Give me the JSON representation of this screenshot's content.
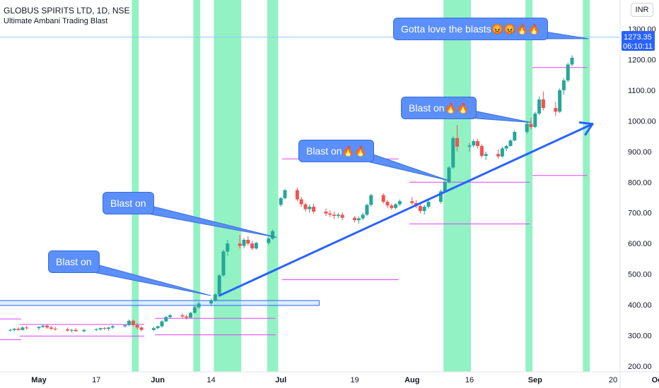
{
  "header": {
    "title": "GLOBUS SPIRITS LTD, 1D, NSE",
    "indicator": "Ultimate Ambani Trading Blast",
    "currency": "INR"
  },
  "price_tag": {
    "price": "1273.35",
    "countdown": "06:10:11"
  },
  "annotations": [
    {
      "text": "Blast on"
    },
    {
      "text": "Blast on"
    },
    {
      "text": "Blast on🔥🔥"
    },
    {
      "text": "Blast on🔥🔥"
    },
    {
      "text": "Gotta love the blasts😡😡🔥🔥"
    }
  ],
  "colors": {
    "up": "#26a69a",
    "down": "#ef5350",
    "highlight": "#7ff0b8",
    "callout": "#5b8ff9",
    "trendline": "#2962ff",
    "level_line": "#e040fb",
    "price_tag_bg": "#2962ff"
  },
  "chart_data": {
    "type": "candlestick",
    "title": "GLOBUS SPIRITS LTD, 1D, NSE",
    "subtitle": "Ultimate Ambani Trading Blast",
    "y_ticks": [
      "1300.00",
      "1200.00",
      "1100.00",
      "1000.00",
      "900.00",
      "800.00",
      "700.00",
      "600.00",
      "500.00",
      "400.00",
      "300.00",
      "200.00"
    ],
    "ylim": [
      190,
      1310
    ],
    "x_ticks": [
      {
        "label": "May",
        "bold": true,
        "x": "2021-05-03"
      },
      {
        "label": "17",
        "bold": false,
        "x": "2021-05-17"
      },
      {
        "label": "Jun",
        "bold": true,
        "x": "2021-06-01"
      },
      {
        "label": "14",
        "bold": false,
        "x": "2021-06-14"
      },
      {
        "label": "Jul",
        "bold": true,
        "x": "2021-07-01"
      },
      {
        "label": "19",
        "bold": false,
        "x": "2021-07-19"
      },
      {
        "label": "Aug",
        "bold": true,
        "x": "2021-08-02"
      },
      {
        "label": "16",
        "bold": false,
        "x": "2021-08-16"
      },
      {
        "label": "Sep",
        "bold": true,
        "x": "2021-09-01"
      },
      {
        "label": "20",
        "bold": false,
        "x": "2021-09-20"
      },
      {
        "label": "Oct",
        "bold": true,
        "x": "2021-10-01"
      }
    ],
    "last_price": 1273.35,
    "candles": [
      [
        "2021-04-22",
        312,
        318,
        308,
        314
      ],
      [
        "2021-04-23",
        314,
        320,
        310,
        316
      ],
      [
        "2021-04-26",
        316,
        322,
        312,
        318
      ],
      [
        "2021-04-27",
        318,
        325,
        314,
        322
      ],
      [
        "2021-04-28",
        322,
        326,
        316,
        318
      ],
      [
        "2021-04-29",
        318,
        330,
        316,
        326
      ],
      [
        "2021-04-30",
        326,
        332,
        320,
        324
      ],
      [
        "2021-05-03",
        324,
        330,
        318,
        328
      ],
      [
        "2021-05-04",
        328,
        336,
        324,
        332
      ],
      [
        "2021-05-05",
        332,
        336,
        322,
        326
      ],
      [
        "2021-05-06",
        326,
        332,
        318,
        322
      ],
      [
        "2021-05-07",
        322,
        328,
        316,
        320
      ],
      [
        "2021-05-10",
        320,
        326,
        312,
        316
      ],
      [
        "2021-05-11",
        316,
        322,
        310,
        318
      ],
      [
        "2021-05-12",
        318,
        324,
        312,
        314
      ],
      [
        "2021-05-14",
        314,
        322,
        310,
        318
      ],
      [
        "2021-05-17",
        318,
        324,
        314,
        320
      ],
      [
        "2021-05-18",
        320,
        326,
        316,
        324
      ],
      [
        "2021-05-19",
        324,
        328,
        318,
        322
      ],
      [
        "2021-05-20",
        322,
        328,
        316,
        326
      ],
      [
        "2021-05-21",
        326,
        334,
        322,
        330
      ],
      [
        "2021-05-24",
        330,
        336,
        326,
        334
      ],
      [
        "2021-05-25",
        334,
        352,
        330,
        348
      ],
      [
        "2021-05-26",
        348,
        352,
        330,
        334
      ],
      [
        "2021-05-27",
        334,
        340,
        320,
        326
      ],
      [
        "2021-05-28",
        326,
        330,
        314,
        318
      ],
      [
        "2021-05-31",
        318,
        328,
        314,
        324
      ],
      [
        "2021-06-01",
        324,
        332,
        320,
        330
      ],
      [
        "2021-06-02",
        330,
        350,
        326,
        346
      ],
      [
        "2021-06-03",
        346,
        364,
        344,
        360
      ],
      [
        "2021-06-04",
        360,
        370,
        354,
        366
      ],
      [
        "2021-06-07",
        366,
        372,
        356,
        362
      ],
      [
        "2021-06-08",
        362,
        368,
        352,
        358
      ],
      [
        "2021-06-09",
        358,
        378,
        356,
        374
      ],
      [
        "2021-06-10",
        374,
        396,
        372,
        392
      ],
      [
        "2021-06-11",
        392,
        410,
        388,
        404
      ],
      [
        "2021-06-14",
        404,
        420,
        396,
        414
      ],
      [
        "2021-06-15",
        414,
        438,
        410,
        434
      ],
      [
        "2021-06-16",
        434,
        500,
        432,
        496
      ],
      [
        "2021-06-17",
        496,
        580,
        492,
        574
      ],
      [
        "2021-06-18",
        574,
        612,
        560,
        600
      ],
      [
        "2021-06-21",
        600,
        628,
        584,
        592
      ],
      [
        "2021-06-22",
        592,
        618,
        584,
        612
      ],
      [
        "2021-06-23",
        612,
        624,
        594,
        600
      ],
      [
        "2021-06-24",
        600,
        608,
        578,
        584
      ],
      [
        "2021-06-25",
        584,
        606,
        580,
        602
      ],
      [
        "2021-06-28",
        602,
        620,
        596,
        616
      ],
      [
        "2021-06-29",
        616,
        646,
        612,
        640
      ],
      [
        "2021-07-01",
        726,
        752,
        720,
        748
      ],
      [
        "2021-07-02",
        748,
        778,
        744,
        774
      ],
      [
        "2021-07-05",
        774,
        782,
        738,
        744
      ],
      [
        "2021-07-06",
        744,
        752,
        720,
        728
      ],
      [
        "2021-07-07",
        728,
        734,
        704,
        712
      ],
      [
        "2021-07-08",
        712,
        728,
        700,
        720
      ],
      [
        "2021-07-09",
        720,
        730,
        698,
        704
      ],
      [
        "2021-07-12",
        704,
        714,
        690,
        698
      ],
      [
        "2021-07-13",
        698,
        708,
        686,
        694
      ],
      [
        "2021-07-14",
        694,
        704,
        680,
        690
      ],
      [
        "2021-07-15",
        690,
        700,
        682,
        694
      ],
      [
        "2021-07-16",
        694,
        702,
        676,
        684
      ],
      [
        "2021-07-19",
        684,
        690,
        668,
        676
      ],
      [
        "2021-07-20",
        676,
        688,
        664,
        682
      ],
      [
        "2021-07-21",
        682,
        700,
        676,
        694
      ],
      [
        "2021-07-22",
        694,
        730,
        690,
        726
      ],
      [
        "2021-07-23",
        726,
        762,
        720,
        758
      ],
      [
        "2021-07-26",
        758,
        764,
        730,
        736
      ],
      [
        "2021-07-27",
        736,
        742,
        716,
        724
      ],
      [
        "2021-07-28",
        724,
        730,
        710,
        716
      ],
      [
        "2021-07-29",
        716,
        732,
        712,
        728
      ],
      [
        "2021-07-30",
        728,
        744,
        722,
        738
      ],
      [
        "2021-08-02",
        738,
        752,
        726,
        732
      ],
      [
        "2021-08-03",
        732,
        742,
        716,
        722
      ],
      [
        "2021-08-04",
        722,
        730,
        698,
        706
      ],
      [
        "2021-08-05",
        706,
        726,
        694,
        720
      ],
      [
        "2021-08-06",
        720,
        742,
        714,
        736
      ],
      [
        "2021-08-09",
        736,
        776,
        730,
        770
      ],
      [
        "2021-08-10",
        770,
        806,
        768,
        800
      ],
      [
        "2021-08-11",
        800,
        852,
        796,
        848
      ],
      [
        "2021-08-12",
        848,
        950,
        844,
        944
      ],
      [
        "2021-08-13",
        944,
        986,
        900,
        916
      ],
      [
        "2021-08-16",
        916,
        928,
        900,
        920
      ],
      [
        "2021-08-17",
        920,
        940,
        914,
        934
      ],
      [
        "2021-08-18",
        934,
        942,
        910,
        918
      ],
      [
        "2021-08-19",
        918,
        924,
        880,
        886
      ],
      [
        "2021-08-20",
        886,
        900,
        872,
        892
      ],
      [
        "2021-08-23",
        892,
        906,
        876,
        884
      ],
      [
        "2021-08-24",
        884,
        916,
        880,
        910
      ],
      [
        "2021-08-25",
        910,
        922,
        902,
        918
      ],
      [
        "2021-08-26",
        918,
        940,
        916,
        936
      ],
      [
        "2021-08-27",
        936,
        970,
        934,
        964
      ],
      [
        "2021-08-30",
        964,
        996,
        958,
        990
      ],
      [
        "2021-08-31",
        990,
        1010,
        972,
        980
      ],
      [
        "2021-09-01",
        980,
        1030,
        976,
        1024
      ],
      [
        "2021-09-02",
        1024,
        1080,
        1018,
        1070
      ],
      [
        "2021-09-03",
        1070,
        1096,
        1034,
        1042
      ],
      [
        "2021-09-06",
        1042,
        1062,
        1016,
        1030
      ],
      [
        "2021-09-07",
        1030,
        1106,
        1026,
        1100
      ],
      [
        "2021-09-08",
        1100,
        1140,
        1086,
        1132
      ],
      [
        "2021-09-09",
        1132,
        1190,
        1126,
        1184
      ],
      [
        "2021-09-10",
        1184,
        1214,
        1178,
        1206
      ]
    ],
    "highlight_ranges": [
      [
        "2021-05-26",
        "2021-05-27"
      ],
      [
        "2021-06-10",
        "2021-06-11"
      ],
      [
        "2021-06-15",
        "2021-06-21"
      ],
      [
        "2021-06-28",
        "2021-06-30"
      ],
      [
        "2021-08-10",
        "2021-08-16"
      ],
      [
        "2021-08-30",
        "2021-08-31"
      ],
      [
        "2021-09-13",
        "2021-09-14"
      ]
    ],
    "levels": [
      {
        "from": "2021-04-22",
        "to": "2021-06-30",
        "y": 414,
        "kind": "zone_top"
      },
      {
        "from": "2021-04-22",
        "to": "2021-06-30",
        "y": 398,
        "kind": "zone_bottom"
      },
      {
        "from": "2021-04-22",
        "to": "2021-04-28",
        "y": 354,
        "kind": "line"
      },
      {
        "from": "2021-04-22",
        "to": "2021-04-28",
        "y": 286,
        "kind": "line"
      },
      {
        "from": "2021-04-29",
        "to": "2021-05-28",
        "y": 336,
        "kind": "line"
      },
      {
        "from": "2021-04-29",
        "to": "2021-05-28",
        "y": 298,
        "kind": "line"
      },
      {
        "from": "2021-06-01",
        "to": "2021-06-29",
        "y": 356,
        "kind": "line"
      },
      {
        "from": "2021-06-01",
        "to": "2021-06-29",
        "y": 302,
        "kind": "line"
      },
      {
        "from": "2021-07-02",
        "to": "2021-07-29",
        "y": 876,
        "kind": "line"
      },
      {
        "from": "2021-07-02",
        "to": "2021-07-29",
        "y": 482,
        "kind": "line"
      },
      {
        "from": "2021-08-02",
        "to": "2021-08-30",
        "y": 800,
        "kind": "line"
      },
      {
        "from": "2021-08-02",
        "to": "2021-08-30",
        "y": 664,
        "kind": "line"
      },
      {
        "from": "2021-09-01",
        "to": "2021-09-13",
        "y": 1174,
        "kind": "line"
      },
      {
        "from": "2021-09-01",
        "to": "2021-09-13",
        "y": 822,
        "kind": "line"
      }
    ],
    "trendline": {
      "from": [
        "2021-06-16",
        430
      ],
      "to": [
        "2021-09-15",
        990
      ],
      "arrowhead": true
    },
    "callouts": [
      {
        "text_index": 0,
        "box_anchor": [
          "2021-05-12",
          540
        ],
        "target": [
          "2021-06-14",
          430
        ]
      },
      {
        "text_index": 1,
        "box_anchor": [
          "2021-06-07",
          765
        ],
        "target": [
          "2021-06-30",
          620
        ]
      },
      {
        "text_index": 2,
        "box_anchor": [
          "2021-07-29",
          890
        ],
        "target": [
          "2021-08-11",
          805
        ]
      },
      {
        "text_index": 3,
        "box_anchor": [
          "2021-08-27",
          1040
        ],
        "target": [
          "2021-08-31",
          995
        ]
      },
      {
        "text_index": 4,
        "box_anchor": [
          "2021-09-09",
          1310
        ],
        "target": [
          "2021-09-14",
          1268
        ]
      }
    ]
  }
}
